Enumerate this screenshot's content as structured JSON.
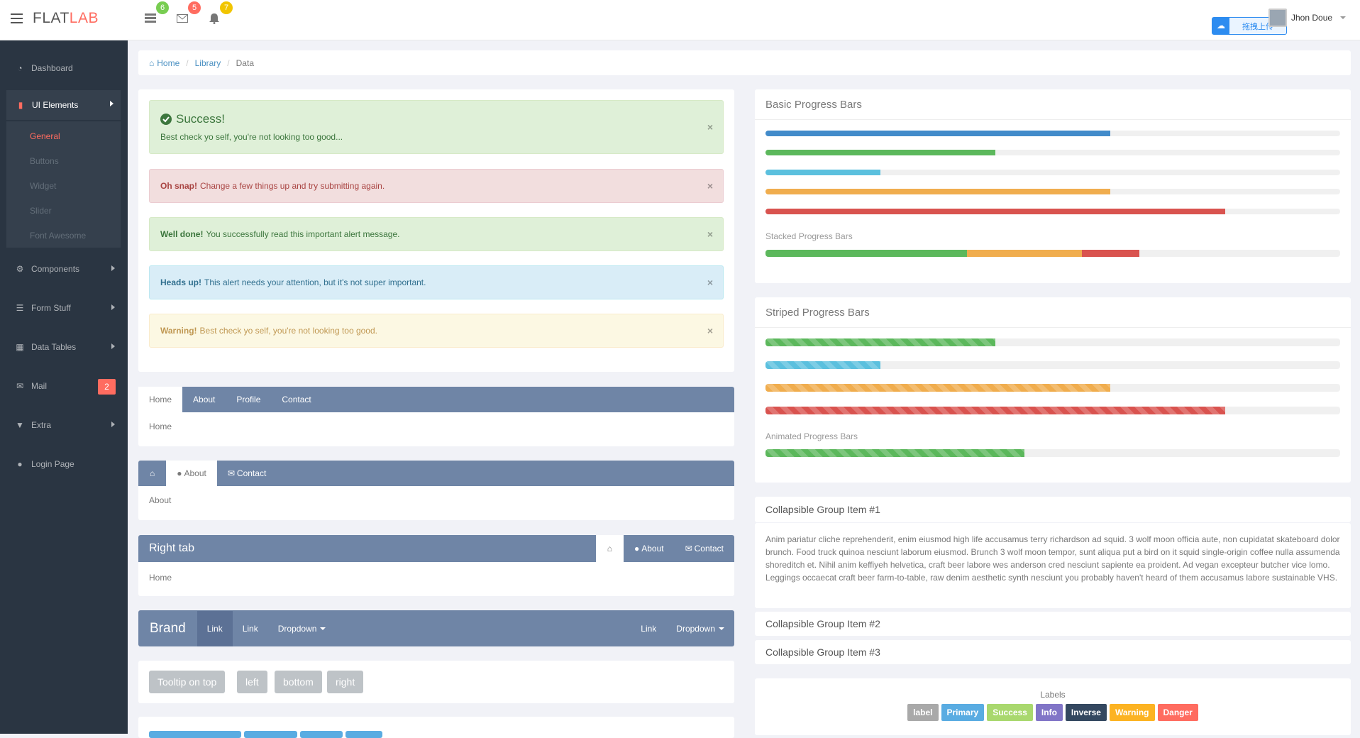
{
  "app": {
    "logo_a": "FLAT",
    "logo_b": "LAB"
  },
  "notifications": [
    {
      "icon": "tasks-icon",
      "count": "6",
      "color": "#78cd51"
    },
    {
      "icon": "envelope-icon",
      "count": "5",
      "color": "#ff6c60"
    },
    {
      "icon": "bell-icon",
      "count": "7",
      "color": "#f1c500"
    }
  ],
  "user": {
    "name": "Jhon Doue"
  },
  "upload": {
    "label": "拖拽上传"
  },
  "sidebar": {
    "items": [
      {
        "label": "Dashboard",
        "icon": "dashboard-icon"
      },
      {
        "label": "UI Elements",
        "icon": "book-icon"
      },
      {
        "label": "Components",
        "icon": "cogs-icon"
      },
      {
        "label": "Form Stuff",
        "icon": "tasks-icon"
      },
      {
        "label": "Data Tables",
        "icon": "th-icon"
      },
      {
        "label": "Mail",
        "icon": "envelope-icon"
      },
      {
        "label": "Extra",
        "icon": "glass-icon"
      },
      {
        "label": "Login Page",
        "icon": "user-icon"
      }
    ],
    "sub": [
      "General",
      "Buttons",
      "Widget",
      "Slider",
      "Font Awesome"
    ],
    "mail_badge": "2"
  },
  "breadcrumb": {
    "home": "Home",
    "library": "Library",
    "current": "Data"
  },
  "alerts": {
    "success_title": "Success!",
    "success_text": "Best check yo self, you're not looking too good...",
    "danger_bold": "Oh snap!",
    "danger_text": "Change a few things up and try submitting again.",
    "done_bold": "Well done!",
    "done_text": "You successfully read this important alert message.",
    "info_bold": "Heads up!",
    "info_text": "This alert needs your attention, but it's not super important.",
    "warn_bold": "Warning!",
    "warn_text": "Best check yo self, you're not looking too good."
  },
  "tabs1": {
    "tabs": [
      "Home",
      "About",
      "Profile",
      "Contact"
    ],
    "body": "Home"
  },
  "tabs2": {
    "about": "About",
    "contact": "Contact",
    "body": "About"
  },
  "tabs3": {
    "title": "Right tab",
    "about": "About",
    "contact": "Contact",
    "body": "Home"
  },
  "navbar": {
    "brand": "Brand",
    "link1": "Link",
    "link2": "Link",
    "dropdown1": "Dropdown",
    "link3": "Link",
    "dropdown2": "Dropdown"
  },
  "tooltips": [
    "Tooltip on top",
    "left",
    "bottom",
    "right"
  ],
  "basic_progress": {
    "title": "Basic Progress Bars",
    "bars": [
      {
        "value": 60,
        "color": "#428bca"
      },
      {
        "value": 40,
        "color": "#5cb85c"
      },
      {
        "value": 20,
        "color": "#5bc0de"
      },
      {
        "value": 60,
        "color": "#f0ad4e"
      },
      {
        "value": 80,
        "color": "#d9534f"
      }
    ],
    "stacked_label": "Stacked Progress Bars",
    "stacked": [
      {
        "value": 35,
        "color": "#5cb85c"
      },
      {
        "value": 20,
        "color": "#f0ad4e"
      },
      {
        "value": 10,
        "color": "#d9534f"
      }
    ]
  },
  "striped_progress": {
    "title": "Striped Progress Bars",
    "bars": [
      {
        "value": 40,
        "color": "#5cb85c"
      },
      {
        "value": 20,
        "color": "#5bc0de"
      },
      {
        "value": 60,
        "color": "#f0ad4e"
      },
      {
        "value": 80,
        "color": "#d9534f"
      }
    ],
    "animated_label": "Animated Progress Bars",
    "animated": {
      "value": 45,
      "color": "#5cb85c"
    }
  },
  "collapse": {
    "item1": "Collapsible Group Item #1",
    "body1": "Anim pariatur cliche reprehenderit, enim eiusmod high life accusamus terry richardson ad squid. 3 wolf moon officia aute, non cupidatat skateboard dolor brunch. Food truck quinoa nesciunt laborum eiusmod. Brunch 3 wolf moon tempor, sunt aliqua put a bird on it squid single-origin coffee nulla assumenda shoreditch et. Nihil anim keffiyeh helvetica, craft beer labore wes anderson cred nesciunt sapiente ea proident. Ad vegan excepteur butcher vice lomo. Leggings occaecat craft beer farm-to-table, raw denim aesthetic synth nesciunt you probably haven't heard of them accusamus labore sustainable VHS.",
    "item2": "Collapsible Group Item #2",
    "item3": "Collapsible Group Item #3"
  },
  "labels": {
    "title": "Labels",
    "items": [
      {
        "text": "label",
        "color": "#a9a9a9"
      },
      {
        "text": "Primary",
        "color": "#59ace2"
      },
      {
        "text": "Success",
        "color": "#a9d86e"
      },
      {
        "text": "Info",
        "color": "#8175c7"
      },
      {
        "text": "Inverse",
        "color": "#344860"
      },
      {
        "text": "Warning",
        "color": "#fcb322"
      },
      {
        "text": "Danger",
        "color": "#ff6c60"
      }
    ]
  }
}
